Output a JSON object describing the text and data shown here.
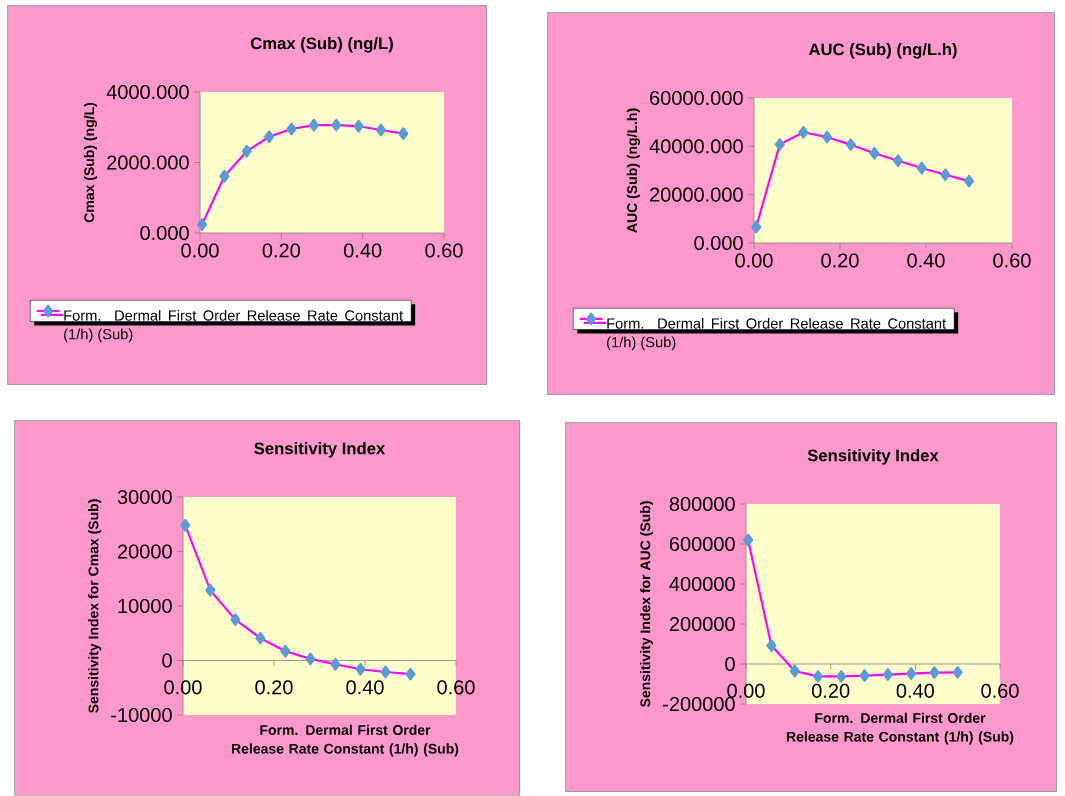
{
  "chart_data": [
    {
      "type": "line",
      "title": "Cmax (Sub) (ng/L)",
      "ylabel": "Cmax (Sub) (ng/L)",
      "x": [
        0.005,
        0.06,
        0.115,
        0.17,
        0.225,
        0.28,
        0.335,
        0.39,
        0.445,
        0.5
      ],
      "series": [
        {
          "name": "Form. Dermal First Order Release Rate Constant (1/h) (Sub)",
          "color": "#ff00ff",
          "values": [
            240,
            1610,
            2320,
            2730,
            2950,
            3060,
            3060,
            3030,
            2920,
            2820
          ]
        }
      ],
      "xlim": [
        0,
        0.6
      ],
      "xticks": [
        {
          "value": 0,
          "label": "0.00"
        },
        {
          "value": 0.2,
          "label": "0.20"
        },
        {
          "value": 0.4,
          "label": "0.40"
        },
        {
          "value": 0.6,
          "label": "0.60"
        }
      ],
      "ylim": [
        0,
        4000
      ],
      "yticks": [
        {
          "value": 0,
          "label": "0.000"
        },
        {
          "value": 2000,
          "label": "2000.000"
        },
        {
          "value": 4000,
          "label": "4000.000"
        }
      ],
      "marker": "diamond",
      "line_style": "solid",
      "legend": "bottom"
    },
    {
      "type": "line",
      "title": "AUC (Sub) (ng/L.h)",
      "ylabel": "AUC (Sub) (ng/L.h)",
      "x": [
        0.005,
        0.06,
        0.115,
        0.17,
        0.225,
        0.28,
        0.335,
        0.39,
        0.445,
        0.5
      ],
      "series": [
        {
          "name": "Form. Dermal First Order Release Rate Constant (1/h) (Sub)",
          "color": "#ff00ff",
          "values": [
            6600,
            40800,
            45800,
            43800,
            40700,
            37100,
            34000,
            31000,
            28200,
            25600
          ]
        }
      ],
      "xlim": [
        0,
        0.6
      ],
      "xticks": [
        {
          "value": 0,
          "label": "0.00"
        },
        {
          "value": 0.2,
          "label": "0.20"
        },
        {
          "value": 0.4,
          "label": "0.40"
        },
        {
          "value": 0.6,
          "label": "0.60"
        }
      ],
      "ylim": [
        0,
        60000
      ],
      "yticks": [
        {
          "value": 0,
          "label": "0.000"
        },
        {
          "value": 20000,
          "label": "20000.000"
        },
        {
          "value": 40000,
          "label": "40000.000"
        },
        {
          "value": 60000,
          "label": "60000.000"
        }
      ],
      "marker": "diamond",
      "line_style": "solid",
      "legend": "bottom"
    },
    {
      "type": "line",
      "title": "Sensitivity Index",
      "xlabel": "Form. Dermal First Order Release Rate Constant (1/h) (Sub)",
      "ylabel": "Sensitivity Index for Cmax (Sub)",
      "x": [
        0.005,
        0.06,
        0.115,
        0.17,
        0.225,
        0.28,
        0.335,
        0.39,
        0.445,
        0.5
      ],
      "series": [
        {
          "color": "#ff00ff",
          "values": [
            24800,
            12900,
            7500,
            4100,
            1700,
            300,
            -700,
            -1600,
            -2100,
            -2500
          ]
        }
      ],
      "xlim": [
        0,
        0.6
      ],
      "xticks": [
        {
          "value": 0,
          "label": "0.00"
        },
        {
          "value": 0.2,
          "label": "0.20"
        },
        {
          "value": 0.4,
          "label": "0.40"
        },
        {
          "value": 0.6,
          "label": "0.60"
        }
      ],
      "ylim": [
        -10000,
        30000
      ],
      "yticks": [
        -10000,
        0,
        10000,
        20000,
        30000
      ],
      "marker": "diamond",
      "line_style": "solid"
    },
    {
      "type": "line",
      "title": "Sensitivity Index",
      "xlabel": "Form. Dermal First Order Release Rate Constant (1/h) (Sub)",
      "ylabel": "Sensitivity Index for AUC (Sub)",
      "x": [
        0.005,
        0.06,
        0.115,
        0.17,
        0.225,
        0.28,
        0.335,
        0.39,
        0.445,
        0.5
      ],
      "series": [
        {
          "color": "#ff00ff",
          "values": [
            620000,
            92000,
            -35000,
            -62000,
            -62000,
            -58000,
            -53000,
            -48000,
            -43000,
            -42000
          ]
        }
      ],
      "xlim": [
        0,
        0.6
      ],
      "xticks": [
        {
          "value": 0,
          "label": "0.00"
        },
        {
          "value": 0.2,
          "label": "0.20"
        },
        {
          "value": 0.4,
          "label": "0.40"
        },
        {
          "value": 0.6,
          "label": "0.60"
        }
      ],
      "ylim": [
        -200000,
        800000
      ],
      "yticks": [
        -200000,
        0,
        200000,
        400000,
        600000,
        800000
      ],
      "marker": "diamond",
      "line_style": "solid"
    }
  ]
}
